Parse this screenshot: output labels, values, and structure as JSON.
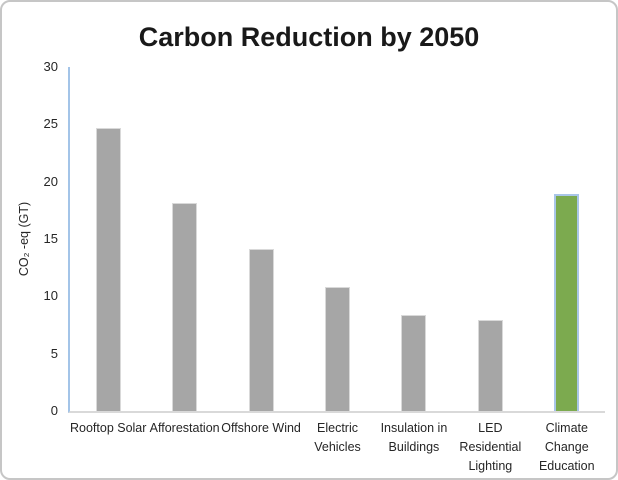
{
  "frame": {
    "background": "#ffffff",
    "border_color": "#c6c6c6"
  },
  "chart_data": {
    "type": "bar",
    "title": "Carbon Reduction by 2050",
    "xlabel": "",
    "ylabel": "CO₂ -eq (GT)",
    "categories": [
      "Rooftop Solar",
      "Afforestation",
      "Offshore Wind",
      "Electric Vehicles",
      "Insulation in Buildings",
      "LED Residential Lighting",
      "Climate Change Education"
    ],
    "values": [
      24.7,
      18.1,
      14.1,
      10.8,
      8.4,
      7.9,
      18.9
    ],
    "ylim": [
      0,
      30
    ],
    "yticks": [
      0,
      5,
      10,
      15,
      20,
      25,
      30
    ],
    "grid": false,
    "legend": "none",
    "bar_color": "#a6a6a6",
    "bar_border_color": "#d9d9d9",
    "highlight_index": 6,
    "highlight_color": "#7caa4f",
    "highlight_border_color": "#a9c6e8",
    "y_axis_line_color": "#a3c4e8",
    "x_axis_line_color": "#d9d9d9",
    "title_color": "#191919",
    "label_color": "#262626"
  }
}
